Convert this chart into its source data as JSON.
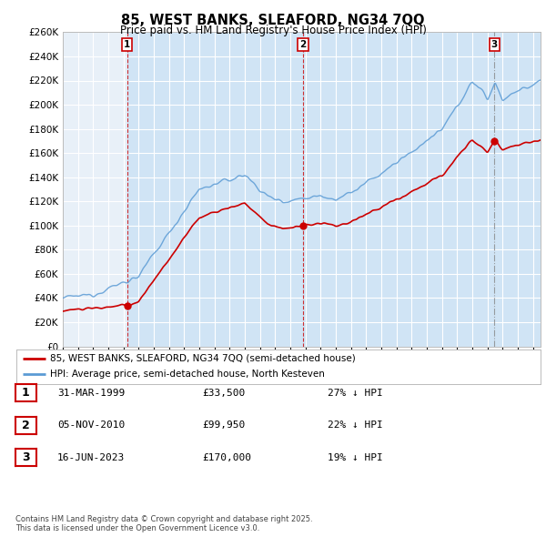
{
  "title": "85, WEST BANKS, SLEAFORD, NG34 7QQ",
  "subtitle": "Price paid vs. HM Land Registry's House Price Index (HPI)",
  "xlim_start": 1995.0,
  "xlim_end": 2026.5,
  "ylim": [
    0,
    260000
  ],
  "yticks": [
    0,
    20000,
    40000,
    60000,
    80000,
    100000,
    120000,
    140000,
    160000,
    180000,
    200000,
    220000,
    240000,
    260000
  ],
  "bg_color": "#ffffff",
  "plot_bg_color": "#e8f0f8",
  "grid_color": "#ffffff",
  "hpi_color": "#5b9bd5",
  "price_color": "#cc0000",
  "vline1_color": "#cc0000",
  "vline2_color": "#cc0000",
  "vline3_color": "#888888",
  "sale1_date": 1999.24,
  "sale1_price": 33500,
  "sale2_date": 2010.84,
  "sale2_price": 99950,
  "sale3_date": 2023.46,
  "sale3_price": 170000,
  "legend_label1": "85, WEST BANKS, SLEAFORD, NG34 7QQ (semi-detached house)",
  "legend_label2": "HPI: Average price, semi-detached house, North Kesteven",
  "table_rows": [
    {
      "num": "1",
      "date": "31-MAR-1999",
      "price": "£33,500",
      "pct": "27% ↓ HPI"
    },
    {
      "num": "2",
      "date": "05-NOV-2010",
      "price": "£99,950",
      "pct": "22% ↓ HPI"
    },
    {
      "num": "3",
      "date": "16-JUN-2023",
      "price": "£170,000",
      "pct": "19% ↓ HPI"
    }
  ],
  "footnote1": "Contains HM Land Registry data © Crown copyright and database right 2025.",
  "footnote2": "This data is licensed under the Open Government Licence v3.0."
}
